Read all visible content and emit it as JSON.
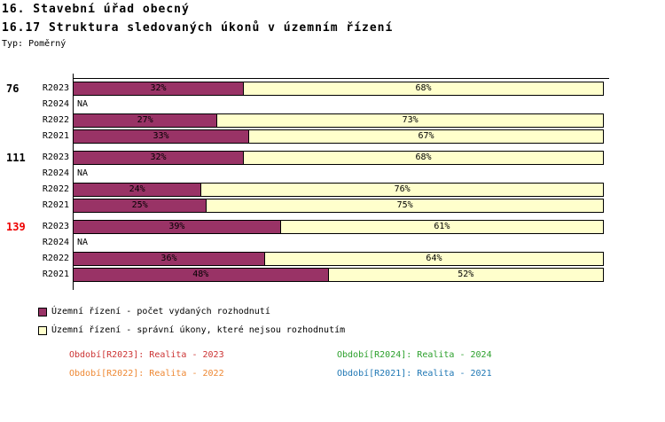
{
  "header": {
    "title_line1": "16. Stavební úřad obecný",
    "title_line2": "16.17 Struktura sledovaných úkonů v územním řízení",
    "type_label": "Typ: Poměrný"
  },
  "chart_data": {
    "type": "bar",
    "orientation": "horizontal",
    "stacked": true,
    "value_unit": "%",
    "xlim": [
      0,
      100
    ],
    "na_text": "NA",
    "series": [
      {
        "name": "Územní řízení - počet vydaných rozhodnutí",
        "color": "#993366"
      },
      {
        "name": "Územní řízení - správní úkony, které nejsou rozhodnutím",
        "color": "#FFFFCC"
      }
    ],
    "groups": [
      {
        "total": "76",
        "total_color": "#000000",
        "rows": [
          {
            "label": "R2023",
            "values": [
              32,
              68
            ]
          },
          {
            "label": "R2024",
            "values": null
          },
          {
            "label": "R2022",
            "values": [
              27,
              73
            ]
          },
          {
            "label": "R2021",
            "values": [
              33,
              67
            ]
          }
        ]
      },
      {
        "total": "111",
        "total_color": "#000000",
        "rows": [
          {
            "label": "R2023",
            "values": [
              32,
              68
            ]
          },
          {
            "label": "R2024",
            "values": null
          },
          {
            "label": "R2022",
            "values": [
              24,
              76
            ]
          },
          {
            "label": "R2021",
            "values": [
              25,
              75
            ]
          }
        ]
      },
      {
        "total": "139",
        "total_color": "#EE0000",
        "rows": [
          {
            "label": "R2023",
            "values": [
              39,
              61
            ]
          },
          {
            "label": "R2024",
            "values": null
          },
          {
            "label": "R2022",
            "values": [
              36,
              64
            ]
          },
          {
            "label": "R2021",
            "values": [
              48,
              52
            ]
          }
        ]
      }
    ]
  },
  "legend": {
    "items": [
      {
        "label": "Územní řízení - počet vydaných rozhodnutí",
        "color": "#993366"
      },
      {
        "label": "Územní řízení - správní úkony, které nejsou rozhodnutím",
        "color": "#FFFFCC"
      }
    ]
  },
  "footnotes": {
    "items": [
      {
        "text": "Období[R2023]: Realita - 2023",
        "color": "#CC3333"
      },
      {
        "text": "Období[R2024]: Realita - 2024",
        "color": "#2CA02C"
      },
      {
        "text": "Období[R2022]: Realita - 2022",
        "color": "#EE8833"
      },
      {
        "text": "Období[R2021]: Realita - 2021",
        "color": "#1F77B4"
      }
    ]
  }
}
